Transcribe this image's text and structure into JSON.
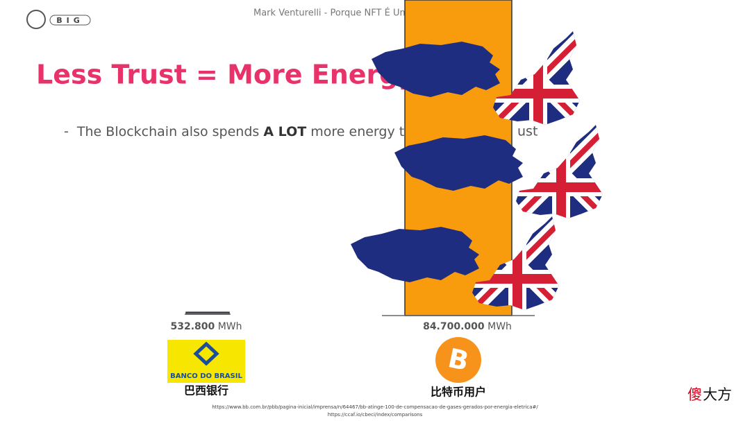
{
  "header": {
    "title": "Mark Venturelli - Porque NFT É Um",
    "logo": "BIG"
  },
  "slide": {
    "title": "Less Trust = More Energy",
    "bullet": [
      "The Blockchain also spends ",
      "A LOT",
      " more energy t",
      "ust"
    ]
  },
  "comparison": [
    {
      "value": 532800,
      "label": "532.800",
      "unit": "MWh",
      "logo_text": "BANCO DO BRASIL",
      "caption": "巴西银行"
    },
    {
      "value": 84700000,
      "label": "84.700.000",
      "unit": "MWh",
      "caption": "比特币用户"
    }
  ],
  "sources": [
    "https://www.bb.com.br/pbb/pagina-inicial/imprensa/n/64467/bb-atinge-100-de-compensacao-de-gases-gerados-por-energia-eletrica#/",
    "https://ccaf.io/cbeci/index/comparisons"
  ],
  "watermark": [
    "傻",
    "大方"
  ]
}
